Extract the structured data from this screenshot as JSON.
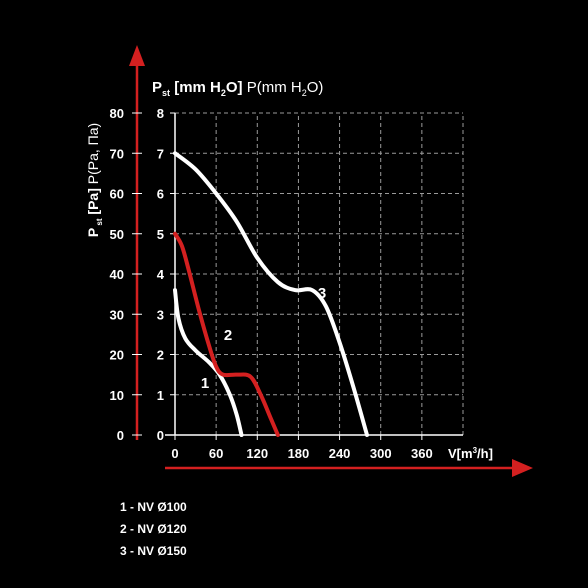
{
  "chart_data": {
    "type": "line",
    "title_left": "P",
    "title_left_sub": "st",
    "title_left_rest": "[Pa] P(Pa, Па)",
    "title_right_main": "P",
    "title_right_sub": "st",
    "title_right_bold": "[mm H",
    "title_right_sub2": "2",
    "title_right_bold2": "O]",
    "title_right_rest": " P(mm H",
    "title_right_sub3": "2",
    "title_right_rest2": "O)",
    "xlabel_main": "V[m",
    "xlabel_sup": "3",
    "xlabel_end": "/h]",
    "x_ticks": [
      "0",
      "60",
      "120",
      "180",
      "240",
      "300",
      "360"
    ],
    "y_pa_ticks": [
      "0",
      "10",
      "20",
      "30",
      "40",
      "50",
      "60",
      "70",
      "80"
    ],
    "y_mm_ticks": [
      "0",
      "1",
      "2",
      "3",
      "4",
      "5",
      "6",
      "7",
      "8"
    ],
    "xlim": [
      0,
      420
    ],
    "ylim": [
      0,
      8
    ],
    "grid": true,
    "series": [
      {
        "name": "1",
        "color": "#ffffff",
        "x": [
          0,
          5,
          15,
          30,
          50,
          65,
          80,
          90,
          97
        ],
        "y": [
          3.6,
          2.9,
          2.4,
          2.1,
          1.8,
          1.5,
          1.0,
          0.5,
          0
        ]
      },
      {
        "name": "2",
        "color": "#d42020",
        "x": [
          0,
          10,
          20,
          35,
          50,
          60,
          70,
          90,
          110,
          125,
          140,
          150
        ],
        "y": [
          5.0,
          4.7,
          4.1,
          3.1,
          2.2,
          1.7,
          1.5,
          1.5,
          1.45,
          1.0,
          0.4,
          0
        ]
      },
      {
        "name": "3",
        "color": "#ffffff",
        "x": [
          0,
          30,
          60,
          90,
          120,
          150,
          175,
          200,
          220,
          240,
          260,
          280
        ],
        "y": [
          7.0,
          6.6,
          6.0,
          5.3,
          4.4,
          3.8,
          3.6,
          3.6,
          3.2,
          2.3,
          1.2,
          0
        ]
      }
    ],
    "curve_labels": [
      "1",
      "2",
      "3"
    ],
    "legend": [
      "1 - NV Ø100",
      "2 - NV Ø120",
      "3 - NV Ø150"
    ]
  }
}
